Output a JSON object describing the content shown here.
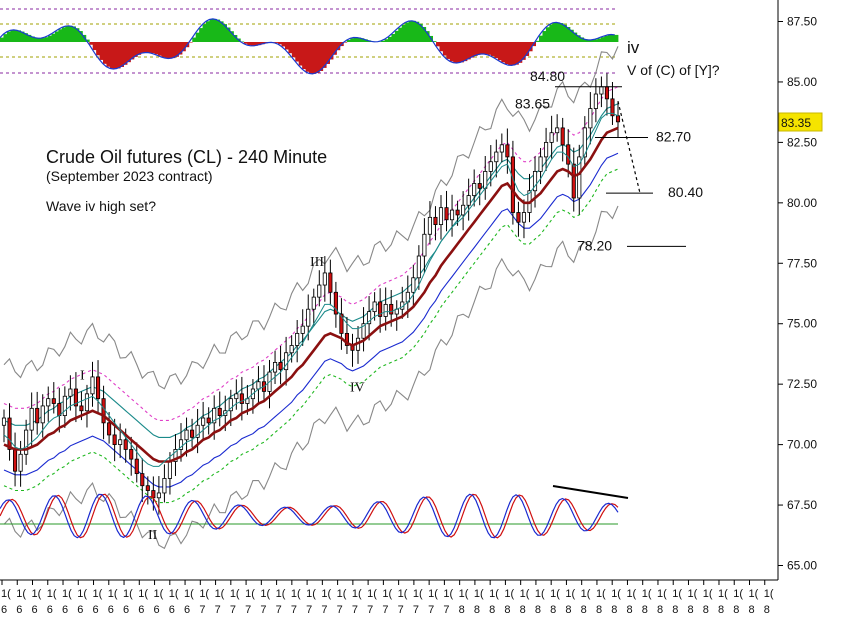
{
  "chart_data": {
    "type": "candlestick",
    "title": "Crude Oil futures (CL) - 240 Minute",
    "subtitle": "(September 2023 contract)",
    "note": "Wave iv high set?",
    "y_axis": {
      "position": "right",
      "ylim": [
        64.8,
        89.0
      ],
      "ticks": [
        "65.00",
        "67.50",
        "70.00",
        "72.50",
        "75.00",
        "77.50",
        "80.00",
        "82.50",
        "85.00",
        "87.50"
      ]
    },
    "last_price": {
      "value": 83.35,
      "label": "83.35",
      "color": "#f5e400"
    },
    "price_levels": [
      {
        "label": "84.80",
        "value": 84.8
      },
      {
        "label": "83.65",
        "value": 83.65
      },
      {
        "label": "82.70",
        "value": 82.7
      },
      {
        "label": "80.40",
        "value": 80.4
      },
      {
        "label": "78.20",
        "value": 78.2
      }
    ],
    "wave_labels": [
      {
        "text": "I",
        "value": 72.9
      },
      {
        "text": "II",
        "value": 66.3
      },
      {
        "text": "III",
        "value": 77.6
      },
      {
        "text": "IV",
        "value": 72.4
      },
      {
        "text": "iv",
        "value": 86.4
      },
      {
        "text": "V of (C) of [Y]?",
        "value": 85.5
      }
    ],
    "x_tick_top": "1(",
    "x_ticks_bottom": [
      "6",
      "6",
      "6",
      "6",
      "6",
      "6",
      "6",
      "6",
      "6",
      "6",
      "6",
      "6",
      "6",
      "7",
      "7",
      "7",
      "7",
      "7",
      "7",
      "7",
      "7",
      "7",
      "7",
      "7",
      "7",
      "7",
      "7",
      "7",
      "7",
      "7",
      "8",
      "8",
      "8",
      "8",
      "8",
      "8",
      "8",
      "8",
      "8",
      "8",
      "8",
      "8",
      "8",
      "8",
      "8",
      "8",
      "8",
      "8",
      "8",
      "8",
      "8"
    ],
    "series": {
      "close": [
        71.1,
        69.8,
        68.9,
        69.6,
        70.6,
        71.5,
        70.9,
        71.6,
        71.9,
        71.7,
        71.2,
        72.0,
        72.3,
        71.6,
        71.4,
        72.1,
        72.8,
        71.9,
        70.9,
        70.4,
        70.0,
        70.2,
        69.8,
        69.4,
        68.8,
        68.3,
        68.1,
        67.8,
        68.0,
        68.6,
        69.3,
        69.8,
        70.2,
        70.6,
        70.3,
        70.8,
        71.1,
        70.9,
        71.5,
        71.2,
        71.4,
        71.9,
        72.1,
        71.7,
        71.9,
        72.3,
        72.6,
        72.2,
        73.0,
        73.4,
        73.1,
        73.8,
        74.1,
        74.6,
        74.9,
        75.6,
        76.1,
        76.6,
        77.1,
        76.3,
        75.4,
        74.6,
        74.1,
        73.9,
        74.4,
        75.0,
        75.5,
        75.9,
        75.3,
        75.8,
        75.4,
        75.6,
        75.9,
        76.3,
        76.9,
        77.8,
        78.7,
        79.4,
        79.1,
        79.8,
        79.3,
        79.7,
        79.5,
        79.9,
        80.3,
        80.8,
        80.6,
        81.3,
        81.7,
        82.1,
        82.4,
        81.9,
        79.6,
        79.2,
        79.6,
        80.5,
        81.3,
        81.9,
        82.5,
        82.9,
        83.1,
        82.4,
        81.6,
        80.2,
        81.9,
        83.1,
        83.9,
        84.5,
        84.8,
        84.3,
        83.6,
        83.35
      ],
      "ma_fast": [
        70.4,
        70.2,
        69.9,
        69.8,
        69.9,
        70.1,
        70.3,
        70.6,
        70.9,
        71.1,
        71.2,
        71.4,
        71.6,
        71.7,
        71.8,
        71.9,
        72.0,
        71.8,
        71.5,
        71.2,
        70.9,
        70.6,
        70.3,
        70.0,
        69.7,
        69.4,
        69.2,
        69.1,
        69.1,
        69.3,
        69.5,
        69.7,
        69.9,
        70.1,
        70.2,
        70.4,
        70.6,
        70.8,
        71.0,
        71.1,
        71.3,
        71.5,
        71.7,
        71.8,
        71.9,
        72.1,
        72.3,
        72.4,
        72.6,
        72.8,
        73.0,
        73.3,
        73.6,
        73.9,
        74.2,
        74.6,
        75.0,
        75.4,
        75.8,
        75.8,
        75.6,
        75.3,
        75.0,
        74.8,
        74.8,
        74.9,
        75.1,
        75.3,
        75.4,
        75.5,
        75.5,
        75.6,
        75.7,
        75.9,
        76.2,
        76.6,
        77.1,
        77.6,
        78.0,
        78.4,
        78.7,
        79.0,
        79.2,
        79.4,
        79.7,
        80.0,
        80.3,
        80.6,
        80.9,
        81.2,
        81.5,
        81.6,
        81.0,
        80.5,
        80.3,
        80.4,
        80.7,
        81.0,
        81.4,
        81.8,
        82.1,
        82.1,
        81.9,
        81.5,
        81.6,
        82.0,
        82.5,
        83.0,
        83.5,
        83.7,
        83.7,
        83.6
      ],
      "ma_slow": [
        70.0,
        69.9,
        69.8,
        69.8,
        69.8,
        69.9,
        70.0,
        70.2,
        70.4,
        70.5,
        70.7,
        70.8,
        71.0,
        71.1,
        71.2,
        71.3,
        71.4,
        71.3,
        71.2,
        71.0,
        70.8,
        70.6,
        70.4,
        70.2,
        70.0,
        69.8,
        69.6,
        69.4,
        69.3,
        69.3,
        69.3,
        69.4,
        69.5,
        69.7,
        69.8,
        70.0,
        70.2,
        70.3,
        70.5,
        70.6,
        70.8,
        71.0,
        71.1,
        71.3,
        71.4,
        71.5,
        71.7,
        71.8,
        72.0,
        72.2,
        72.4,
        72.6,
        72.8,
        73.1,
        73.3,
        73.6,
        73.9,
        74.2,
        74.5,
        74.6,
        74.5,
        74.4,
        74.2,
        74.1,
        74.2,
        74.3,
        74.5,
        74.7,
        74.9,
        75.0,
        75.1,
        75.2,
        75.3,
        75.5,
        75.7,
        76.0,
        76.3,
        76.7,
        77.0,
        77.4,
        77.7,
        78.0,
        78.3,
        78.6,
        78.9,
        79.2,
        79.5,
        79.8,
        80.1,
        80.4,
        80.7,
        80.8,
        80.5,
        80.2,
        80.0,
        80.0,
        80.2,
        80.4,
        80.7,
        81.0,
        81.3,
        81.4,
        81.3,
        81.1,
        81.2,
        81.5,
        81.8,
        82.2,
        82.6,
        82.9,
        83.0,
        83.1
      ]
    }
  }
}
